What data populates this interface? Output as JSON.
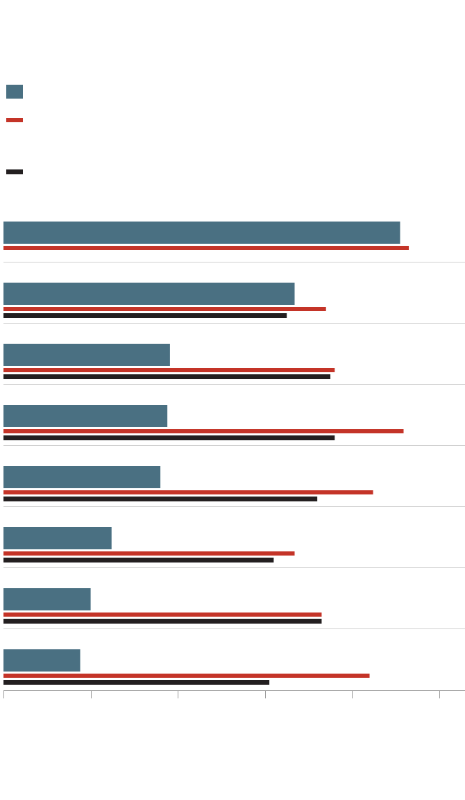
{
  "chart_data": {
    "type": "bar",
    "orientation": "horizontal",
    "title": "",
    "xlabel": "",
    "ylabel": "",
    "xlim": [
      0,
      5.29
    ],
    "xticks": [
      0,
      1,
      2,
      3,
      4,
      5
    ],
    "tick_labels_printed": false,
    "grid": false,
    "legend": "top-left",
    "categories": [
      "",
      "",
      "",
      "",
      "",
      "",
      "",
      ""
    ],
    "series": [
      {
        "color": "#4a7082",
        "style": "thick",
        "values": [
          4.55,
          3.34,
          1.91,
          1.88,
          1.8,
          1.24,
          1.0,
          0.88
        ]
      },
      {
        "color": "#c43428",
        "style": "thin",
        "values": [
          4.65,
          3.7,
          3.8,
          4.59,
          4.24,
          3.34,
          3.65,
          4.2
        ]
      },
      {
        "color": "#231f20",
        "style": "thin",
        "values": [
          null,
          3.25,
          3.75,
          3.8,
          3.6,
          3.1,
          3.65,
          3.05
        ]
      }
    ],
    "separator_color": "#d0d0d0",
    "axis_color": "#999999"
  }
}
